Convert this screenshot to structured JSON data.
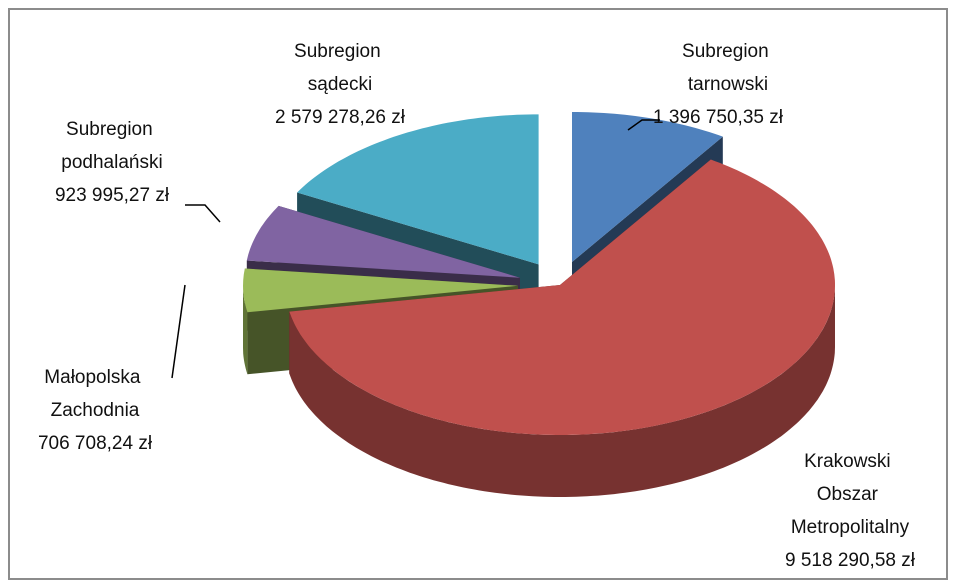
{
  "chart_data": {
    "type": "pie",
    "categories": [
      "Subregion tarnowski",
      "Krakowski Obszar Metropolitalny",
      "Małopolska Zachodnia",
      "Subregion podhalański",
      "Subregion sądecki"
    ],
    "values": [
      1396750.35,
      9518290.58,
      706708.24,
      923995.27,
      2579278.26
    ],
    "value_labels": [
      "1 396 750,35 zł",
      "9 518 290,58 zł",
      "706 708,24 zł",
      "923 995,27 zł",
      "2 579 278,26 zł"
    ],
    "colors": [
      "#4f81bd",
      "#c0504d",
      "#9bbb59",
      "#8064a2",
      "#4bacc6"
    ]
  }
}
